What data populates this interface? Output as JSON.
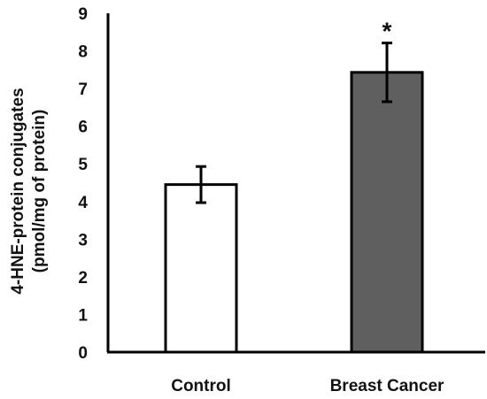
{
  "chart_data": {
    "type": "bar",
    "categories": [
      "Control",
      "Breast Cancer"
    ],
    "values": [
      4.45,
      7.43
    ],
    "errors": [
      0.48,
      0.78
    ],
    "ylabel_lines": [
      "4-HNE-protein conjugates",
      "(pmol/mg of protein)"
    ],
    "ylim": [
      0,
      9
    ],
    "yticks": [
      "0",
      "1",
      "2",
      "3",
      "4",
      "5",
      "6",
      "7",
      "8",
      "9"
    ],
    "annotations": [
      "",
      "*"
    ],
    "grid": false,
    "colors": [
      "#ffffff",
      "#5f5f5f"
    ],
    "edge_color": "#000000"
  }
}
